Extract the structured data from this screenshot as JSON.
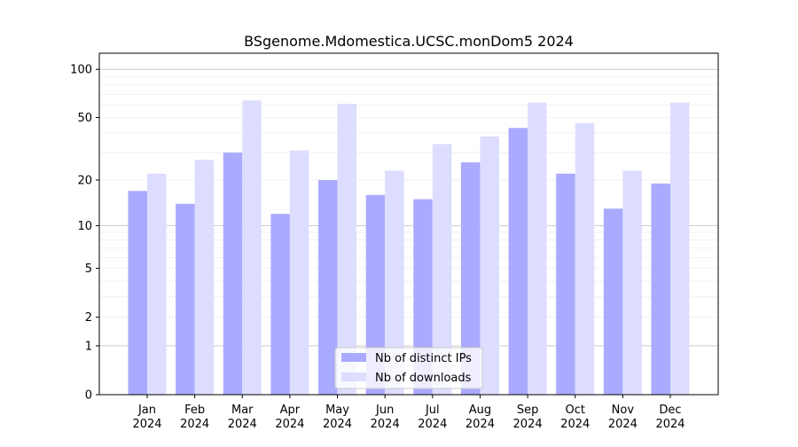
{
  "chart_data": {
    "type": "bar",
    "title": "BSgenome.Mdomestica.UCSC.monDom5 2024",
    "xlabel": "",
    "ylabel": "",
    "yscale": "log10(1+y)",
    "ylim": [
      0,
      130
    ],
    "yticks": [
      0,
      1,
      2,
      5,
      10,
      20,
      50,
      100
    ],
    "ytick_labels": [
      "0",
      "1",
      "2",
      "5",
      "10",
      "20",
      "50",
      "100"
    ],
    "grid": true,
    "legend_placement": "bottom-center",
    "categories": [
      "Jan\n2024",
      "Feb\n2024",
      "Mar\n2024",
      "Apr\n2024",
      "May\n2024",
      "Jun\n2024",
      "Jul\n2024",
      "Aug\n2024",
      "Sep\n2024",
      "Oct\n2024",
      "Nov\n2024",
      "Dec\n2024"
    ],
    "series": [
      {
        "name": "Nb of distinct IPs",
        "color": "#aaaaff",
        "values": [
          17,
          14,
          30,
          12,
          20,
          16,
          15,
          26,
          43,
          22,
          13,
          19
        ]
      },
      {
        "name": "Nb of downloads",
        "color": "#ddddff",
        "values": [
          22,
          27,
          64,
          31,
          61,
          23,
          34,
          38,
          62,
          46,
          23,
          62
        ]
      }
    ]
  }
}
